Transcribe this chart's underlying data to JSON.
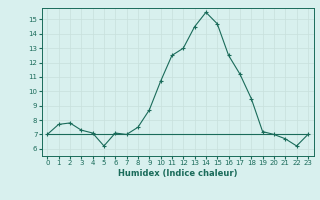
{
  "x": [
    0,
    1,
    2,
    3,
    4,
    5,
    6,
    7,
    8,
    9,
    10,
    11,
    12,
    13,
    14,
    15,
    16,
    17,
    18,
    19,
    20,
    21,
    22,
    23
  ],
  "y_main": [
    7.0,
    7.7,
    7.8,
    7.3,
    7.1,
    6.2,
    7.1,
    7.0,
    7.5,
    8.7,
    10.7,
    12.5,
    13.0,
    14.5,
    15.5,
    14.7,
    12.5,
    11.2,
    9.5,
    7.2,
    7.0,
    6.7,
    6.2,
    7.0
  ],
  "y_flat1": [
    7.0,
    7.0,
    7.0,
    7.0,
    7.0,
    7.0,
    7.0,
    7.0,
    7.0,
    7.0,
    7.0,
    7.0,
    7.0,
    7.0,
    7.0,
    7.0,
    7.0,
    7.0,
    7.0,
    7.0,
    7.0,
    7.0,
    7.0,
    7.0
  ],
  "y_flat2": [
    7.0,
    7.0,
    7.0,
    7.0,
    7.0,
    7.0,
    7.0,
    7.0,
    7.0,
    7.0,
    7.0,
    7.0,
    7.0,
    7.0,
    7.0,
    7.0,
    7.0,
    7.0,
    7.0,
    7.0,
    7.0,
    7.0,
    7.0,
    7.0
  ],
  "line_color": "#1a6b5a",
  "bg_color": "#d8f0ee",
  "grid_color": "#c8e0dc",
  "xlabel": "Humidex (Indice chaleur)",
  "ylim": [
    5.5,
    15.8
  ],
  "xlim": [
    -0.5,
    23.5
  ],
  "yticks": [
    6,
    7,
    8,
    9,
    10,
    11,
    12,
    13,
    14,
    15
  ],
  "xticks": [
    0,
    1,
    2,
    3,
    4,
    5,
    6,
    7,
    8,
    9,
    10,
    11,
    12,
    13,
    14,
    15,
    16,
    17,
    18,
    19,
    20,
    21,
    22,
    23
  ],
  "marker": "+"
}
